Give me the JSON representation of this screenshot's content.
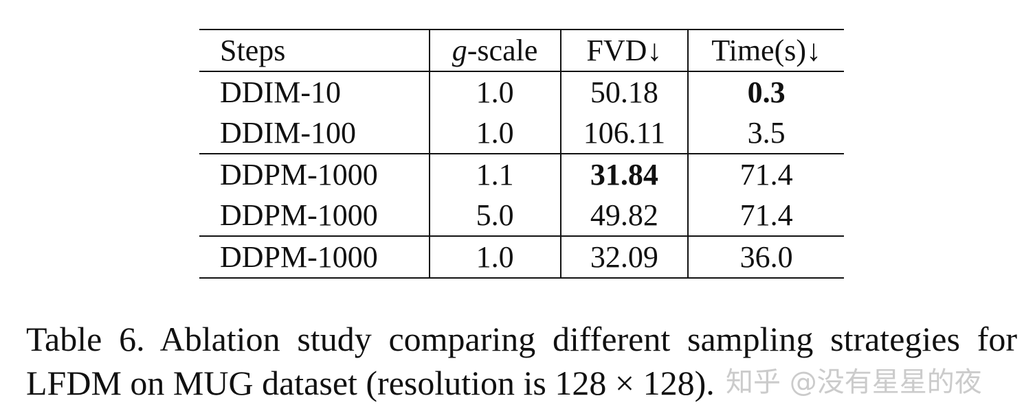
{
  "table": {
    "headers": {
      "steps": "Steps",
      "g_var": "g",
      "g_rest": "-scale",
      "fvd": "FVD↓",
      "time": "Time(s)↓"
    },
    "rows": [
      {
        "steps": "DDIM-10",
        "g": "1.0",
        "fvd": "50.18",
        "time": "0.3"
      },
      {
        "steps": "DDIM-100",
        "g": "1.0",
        "fvd": "106.11",
        "time": "3.5"
      },
      {
        "steps": "DDPM-1000",
        "g": "1.1",
        "fvd": "31.84",
        "time": "71.4"
      },
      {
        "steps": "DDPM-1000",
        "g": "5.0",
        "fvd": "49.82",
        "time": "71.4"
      },
      {
        "steps": "DDPM-1000",
        "g": "1.0",
        "fvd": "32.09",
        "time": "36.0"
      }
    ]
  },
  "caption": "Table 6. Ablation study comparing different sampling strategies for LFDM on MUG dataset (resolution is 128 × 128).",
  "watermark": "知乎 @没有星星的夜"
}
